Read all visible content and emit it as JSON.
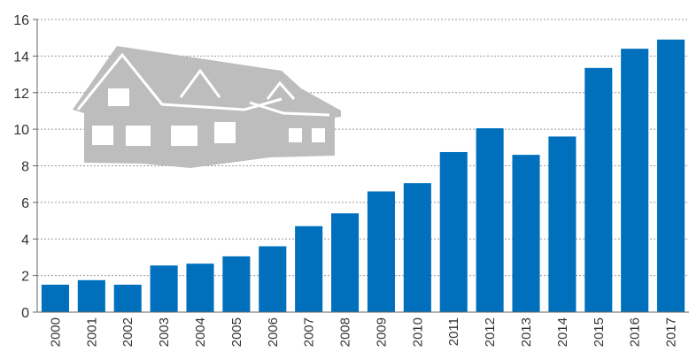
{
  "chart_data": {
    "type": "bar",
    "title": "",
    "xlabel": "",
    "ylabel": "",
    "categories": [
      "2000",
      "2001",
      "2002",
      "2003",
      "2004",
      "2005",
      "2006",
      "2007",
      "2008",
      "2009",
      "2010",
      "2011",
      "2012",
      "2013",
      "2014",
      "2015",
      "2016",
      "2017"
    ],
    "values": [
      1.5,
      1.75,
      1.5,
      2.55,
      2.65,
      3.05,
      3.6,
      4.7,
      5.4,
      6.6,
      7.05,
      8.75,
      10.05,
      8.6,
      9.6,
      13.35,
      14.4,
      14.9
    ],
    "ylim": [
      0,
      16
    ],
    "yticks": [
      0,
      2,
      4,
      6,
      8,
      10,
      12,
      14,
      16
    ],
    "grid": true,
    "legend": "none",
    "colors": {
      "bar": "#0070bd",
      "grid": "#999999",
      "axis": "#666666",
      "illustration": "#bdbdbd"
    },
    "illustration": "house-icon"
  }
}
